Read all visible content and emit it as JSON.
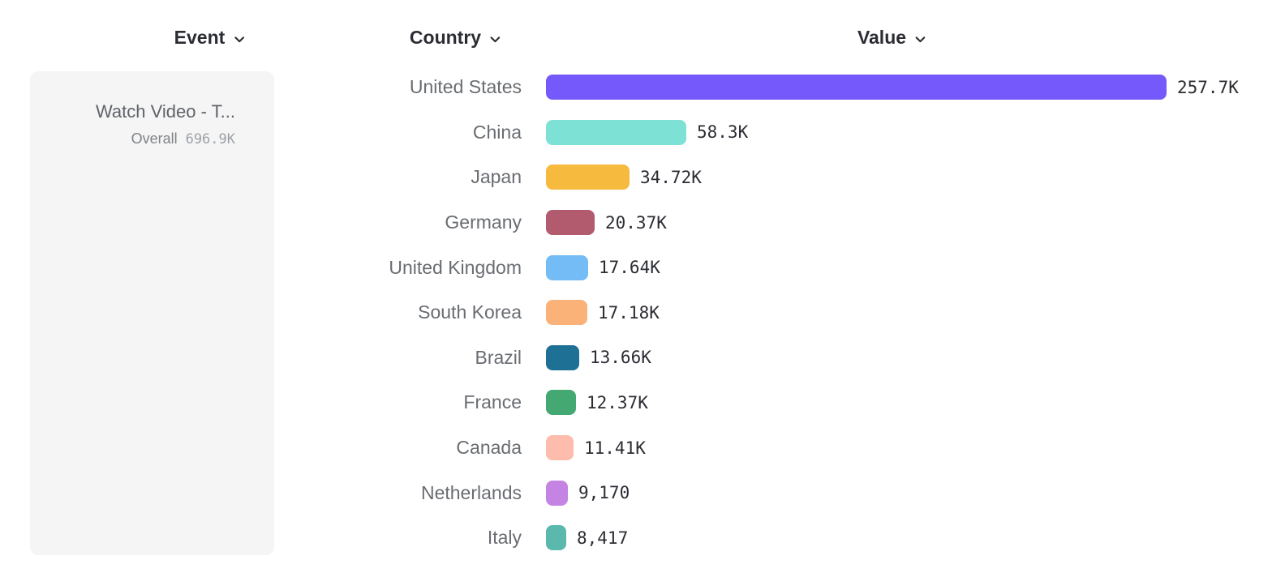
{
  "columns": {
    "event_label": "Event",
    "country_label": "Country",
    "value_label": "Value"
  },
  "event_panel": {
    "title": "Watch Video - T...",
    "overall_label": "Overall",
    "overall_value": "696.9K"
  },
  "chart_data": {
    "type": "bar",
    "orientation": "horizontal",
    "title": "",
    "xlabel": "Value",
    "ylabel": "Country",
    "grid": false,
    "legend": "none",
    "xlim": [
      0,
      257700
    ],
    "categories": [
      "United States",
      "China",
      "Japan",
      "Germany",
      "United Kingdom",
      "South Korea",
      "Brazil",
      "France",
      "Canada",
      "Netherlands",
      "Italy"
    ],
    "values": [
      257700,
      58300,
      34720,
      20370,
      17640,
      17180,
      13660,
      12370,
      11410,
      9170,
      8417
    ],
    "value_labels": [
      "257.7K",
      "58.3K",
      "34.72K",
      "20.37K",
      "17.64K",
      "17.18K",
      "13.66K",
      "12.37K",
      "11.41K",
      "9,170",
      "8,417"
    ],
    "bar_colors": [
      "#7559fa",
      "#7de2d5",
      "#f6ba3f",
      "#b25a6e",
      "#74bcf5",
      "#fbb279",
      "#1e7095",
      "#43a871",
      "#fdbcac",
      "#c583e3",
      "#5ab8ac"
    ]
  }
}
